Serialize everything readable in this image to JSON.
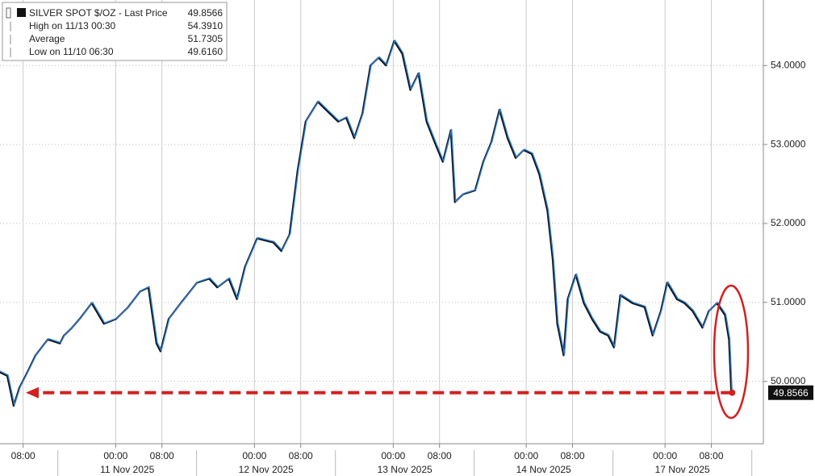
{
  "chart_data": {
    "type": "line",
    "series": [
      {
        "name": "SILVER SPOT $/OZ - Last Price",
        "color": "#2f7fd6",
        "x": [
          0,
          1.4,
          2.5,
          3.5,
          4.9,
          6.3,
          8.4,
          10.5,
          11.2,
          12.6,
          13.9,
          16.0,
          18.1,
          20.2,
          22.3,
          24.4,
          25.8,
          27.2,
          27.9,
          29.3,
          31.4,
          34.2,
          36.3,
          37.7,
          39.7,
          41.1,
          42.5,
          44.6,
          47.4,
          48.8,
          50.2,
          51.6,
          53.0,
          55.1,
          56.5,
          57.9,
          58.6,
          60.0,
          61.4,
          62.8,
          64.2,
          65.6,
          66.9,
          68.3,
          69.7,
          71.1,
          72.5,
          73.9,
          75.3,
          76.7,
          78.1,
          78.8,
          80.2,
          82.3,
          83.7,
          85.1,
          86.5,
          87.9,
          89.3,
          90.7,
          92.1,
          93.4,
          94.8,
          95.7,
          96.5,
          97.6,
          98.3,
          99.7,
          101.1,
          102.5,
          103.9,
          105.3,
          106.3,
          107.4,
          109.5,
          111.6,
          113.0,
          114.4,
          115.5,
          117.2,
          118.5,
          119.9,
          121.6,
          122.7,
          124.1,
          125.5,
          126.2,
          126.6
        ],
        "values": [
          50.13,
          50.08,
          49.7,
          49.93,
          50.13,
          50.34,
          50.54,
          50.49,
          50.59,
          50.69,
          50.8,
          51.0,
          50.74,
          50.8,
          50.95,
          51.15,
          51.2,
          50.49,
          50.39,
          50.8,
          51.0,
          51.26,
          51.31,
          51.2,
          51.31,
          51.05,
          51.46,
          51.82,
          51.77,
          51.66,
          51.87,
          52.68,
          53.3,
          53.55,
          53.45,
          53.35,
          53.3,
          53.35,
          53.09,
          53.4,
          54.01,
          54.11,
          54.01,
          54.32,
          54.16,
          53.7,
          53.91,
          53.3,
          53.04,
          52.79,
          53.19,
          52.28,
          52.38,
          52.43,
          52.79,
          53.04,
          53.45,
          53.09,
          52.84,
          52.94,
          52.89,
          52.63,
          52.17,
          51.56,
          50.74,
          50.34,
          51.05,
          51.36,
          51.0,
          50.8,
          50.64,
          50.59,
          50.44,
          51.1,
          51.0,
          50.95,
          50.59,
          50.9,
          51.26,
          51.05,
          51.0,
          50.9,
          50.69,
          50.9,
          51.0,
          50.85,
          50.54,
          49.8566
        ]
      }
    ],
    "stats": {
      "names": [
        "High on 11/13 00:30",
        "Average",
        "Low on 11/10 06:30"
      ],
      "values": [
        54.391,
        51.7305,
        49.616
      ],
      "value_labels": [
        "54.3910",
        "51.7305",
        "49.6160"
      ]
    },
    "xlim": [
      0,
      132
    ],
    "xticks": [
      {
        "value": 4,
        "label": "08:00"
      },
      {
        "value": 20,
        "label": "00:00"
      },
      {
        "value": 28,
        "label": "08:00"
      },
      {
        "value": 44,
        "label": "00:00"
      },
      {
        "value": 52,
        "label": "08:00"
      },
      {
        "value": 68,
        "label": "00:00"
      },
      {
        "value": 76,
        "label": "08:00"
      },
      {
        "value": 91,
        "label": "00:00"
      },
      {
        "value": 99,
        "label": "08:00"
      },
      {
        "value": 115,
        "label": "00:00"
      },
      {
        "value": 123,
        "label": "08:00"
      }
    ],
    "date_labels": [
      {
        "value": 22,
        "label": "11 Nov 2025"
      },
      {
        "value": 46,
        "label": "12 Nov 2025"
      },
      {
        "value": 70,
        "label": "13 Nov 2025"
      },
      {
        "value": 94,
        "label": "14 Nov 2025"
      },
      {
        "value": 118,
        "label": "17 Nov 2025"
      }
    ],
    "ylim": [
      49.21,
      54.83
    ],
    "yticks": [
      {
        "value": 50,
        "label": "50.0000"
      },
      {
        "value": 51,
        "label": "51.0000"
      },
      {
        "value": 52,
        "label": "52.0000"
      },
      {
        "value": 53,
        "label": "53.0000"
      },
      {
        "value": 54,
        "label": "54.0000"
      }
    ],
    "grid": true
  }
}
